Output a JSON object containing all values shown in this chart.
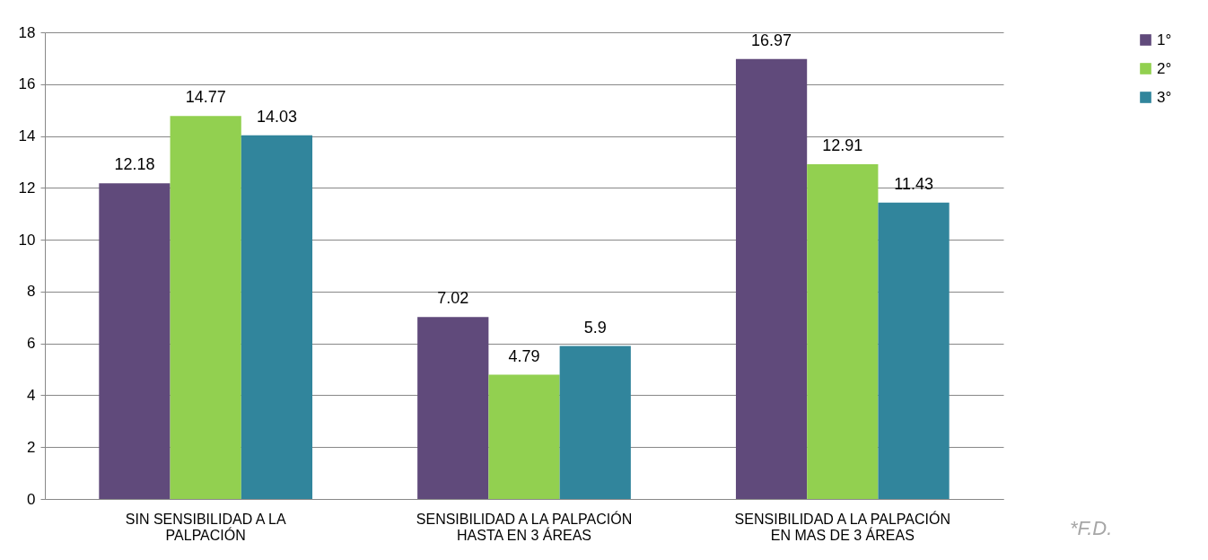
{
  "chart_data": {
    "type": "bar",
    "categories": [
      "SIN SENSIBILIDAD A LA PALPACIÓN",
      "SENSIBILIDAD A LA PALPACIÓN HASTA EN 3 ÁREAS",
      "SENSIBILIDAD A LA PALPACIÓN EN MAS DE 3 ÁREAS"
    ],
    "series": [
      {
        "name": "1°",
        "color": "#604a7b",
        "values": [
          12.18,
          7.02,
          16.97
        ]
      },
      {
        "name": "2°",
        "color": "#92d050",
        "values": [
          14.77,
          4.79,
          12.91
        ]
      },
      {
        "name": "3°",
        "color": "#31859c",
        "values": [
          14.03,
          5.9,
          11.43
        ]
      }
    ],
    "ylim": [
      0,
      18
    ],
    "yticks": [
      0,
      2,
      4,
      6,
      8,
      10,
      12,
      14,
      16,
      18
    ],
    "grid": "y",
    "legend": "right",
    "data_labels": true,
    "annotations": [
      "*F.D."
    ]
  }
}
